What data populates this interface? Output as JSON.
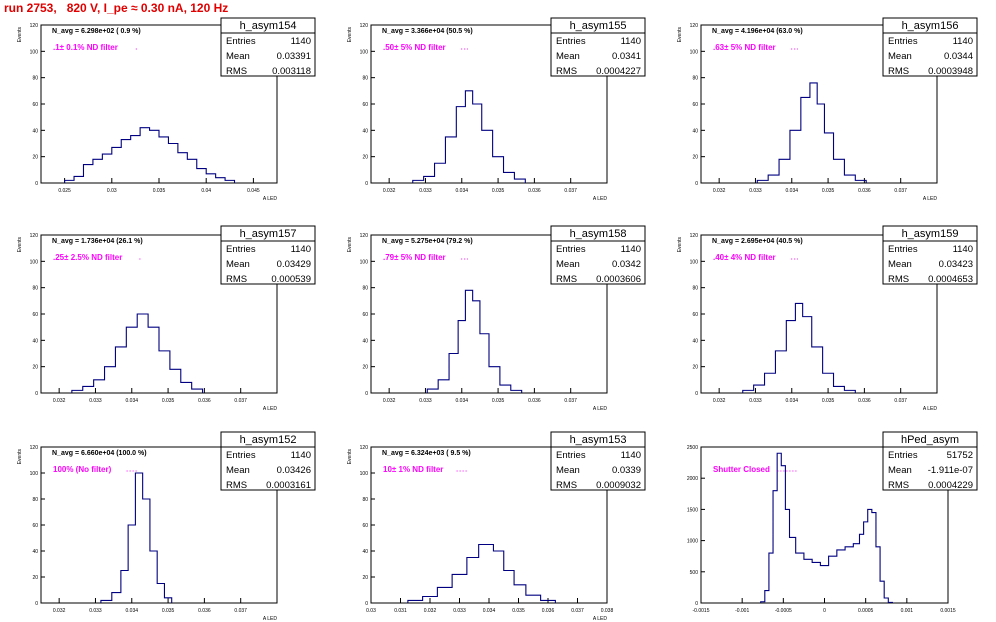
{
  "canvas_title": "run 2753,   820 V, I_pe ≈ 0.30 nA, 120 Hz",
  "colors": {
    "title": "#e00000",
    "annotation": "#ff00ff",
    "histogram": "#000080",
    "axis": "#000000"
  },
  "chart_data": [
    {
      "type": "histogram",
      "name": "h_asym154",
      "ylabel": "Events",
      "xlabel": "A_LED",
      "stats": {
        "entries_label": "Entries",
        "entries": "1140",
        "mean_label": "Mean",
        "mean": "0.03391",
        "rms_label": "RMS",
        "rms": "0.003118"
      },
      "navg": "N_avg = 6.298e+02 ( 0.9 %)",
      "filter_label": ".1± 0.1% ND filter",
      "xlim": [
        0.0225,
        0.0475
      ],
      "ylim": [
        0,
        120
      ],
      "xticks": [
        0.025,
        0.03,
        0.035,
        0.04,
        0.045
      ],
      "xtick_labels": [
        "0.025",
        "0.03",
        "0.035",
        "0.04",
        "0.045"
      ],
      "yticks": [
        0,
        20,
        40,
        60,
        80,
        100,
        120
      ],
      "ytick_labels": [
        "0",
        "20",
        "40",
        "60",
        "80",
        "100",
        "120"
      ],
      "points": [
        [
          0.0255,
          2
        ],
        [
          0.0265,
          5
        ],
        [
          0.0275,
          14
        ],
        [
          0.0285,
          18
        ],
        [
          0.0295,
          22
        ],
        [
          0.0305,
          27
        ],
        [
          0.0315,
          33
        ],
        [
          0.0325,
          36
        ],
        [
          0.0335,
          42
        ],
        [
          0.0345,
          40
        ],
        [
          0.0355,
          35
        ],
        [
          0.0365,
          30
        ],
        [
          0.0375,
          23
        ],
        [
          0.0385,
          18
        ],
        [
          0.0395,
          11
        ],
        [
          0.0405,
          7
        ],
        [
          0.0415,
          4
        ],
        [
          0.0425,
          2
        ]
      ]
    },
    {
      "type": "histogram",
      "name": "h_asym155",
      "ylabel": "Events",
      "xlabel": "A_LED",
      "stats": {
        "entries_label": "Entries",
        "entries": "1140",
        "mean_label": "Mean",
        "mean": "0.0341",
        "rms_label": "RMS",
        "rms": "0.0004227"
      },
      "navg": "N_avg = 3.366e+04 (50.5 %)",
      "filter_label": ".50± 5% ND filter",
      "xlim": [
        0.0315,
        0.038
      ],
      "ylim": [
        0,
        120
      ],
      "xticks": [
        0.032,
        0.033,
        0.034,
        0.035,
        0.036,
        0.037
      ],
      "xtick_labels": [
        "0.032",
        "0.033",
        "0.034",
        "0.035",
        "0.036",
        "0.037"
      ],
      "yticks": [
        0,
        20,
        40,
        60,
        80,
        100,
        120
      ],
      "ytick_labels": [
        "0",
        "20",
        "40",
        "60",
        "80",
        "100",
        "120"
      ],
      "points": [
        [
          0.0328,
          2
        ],
        [
          0.0331,
          5
        ],
        [
          0.0334,
          15
        ],
        [
          0.0337,
          35
        ],
        [
          0.034,
          58
        ],
        [
          0.0342,
          70
        ],
        [
          0.0344,
          60
        ],
        [
          0.0347,
          40
        ],
        [
          0.035,
          20
        ],
        [
          0.0353,
          8
        ],
        [
          0.0356,
          3
        ]
      ]
    },
    {
      "type": "histogram",
      "name": "h_asym156",
      "ylabel": "Events",
      "xlabel": "A_LED",
      "stats": {
        "entries_label": "Entries",
        "entries": "1140",
        "mean_label": "Mean",
        "mean": "0.0344",
        "rms_label": "RMS",
        "rms": "0.0003948"
      },
      "navg": "N_avg = 4.196e+04 (63.0 %)",
      "filter_label": ".63± 5% ND filter",
      "xlim": [
        0.0315,
        0.038
      ],
      "ylim": [
        0,
        120
      ],
      "xticks": [
        0.032,
        0.033,
        0.034,
        0.035,
        0.036,
        0.037
      ],
      "xtick_labels": [
        "0.032",
        "0.033",
        "0.034",
        "0.035",
        "0.036",
        "0.037"
      ],
      "yticks": [
        0,
        20,
        40,
        60,
        80,
        100,
        120
      ],
      "ytick_labels": [
        "0",
        "20",
        "40",
        "60",
        "80",
        "100",
        "120"
      ],
      "points": [
        [
          0.0332,
          2
        ],
        [
          0.0335,
          6
        ],
        [
          0.0338,
          18
        ],
        [
          0.0341,
          40
        ],
        [
          0.0344,
          65
        ],
        [
          0.0346,
          76
        ],
        [
          0.0348,
          60
        ],
        [
          0.035,
          38
        ],
        [
          0.0353,
          18
        ],
        [
          0.0356,
          6
        ],
        [
          0.0359,
          2
        ]
      ]
    },
    {
      "type": "histogram",
      "name": "h_asym157",
      "ylabel": "Events",
      "xlabel": "A_LED",
      "stats": {
        "entries_label": "Entries",
        "entries": "1140",
        "mean_label": "Mean",
        "mean": "0.03429",
        "rms_label": "RMS",
        "rms": "0.000539"
      },
      "navg": "N_avg = 1.736e+04 (26.1 %)",
      "filter_label": ".25± 2.5% ND filter",
      "xlim": [
        0.0315,
        0.038
      ],
      "ylim": [
        0,
        120
      ],
      "xticks": [
        0.032,
        0.033,
        0.034,
        0.035,
        0.036,
        0.037
      ],
      "xtick_labels": [
        "0.032",
        "0.033",
        "0.034",
        "0.035",
        "0.036",
        "0.037"
      ],
      "yticks": [
        0,
        20,
        40,
        60,
        80,
        100,
        120
      ],
      "ytick_labels": [
        "0",
        "20",
        "40",
        "60",
        "80",
        "100",
        "120"
      ],
      "points": [
        [
          0.0325,
          2
        ],
        [
          0.0328,
          5
        ],
        [
          0.0331,
          10
        ],
        [
          0.0334,
          20
        ],
        [
          0.0337,
          35
        ],
        [
          0.034,
          50
        ],
        [
          0.0343,
          60
        ],
        [
          0.0346,
          50
        ],
        [
          0.0349,
          32
        ],
        [
          0.0352,
          18
        ],
        [
          0.0355,
          8
        ],
        [
          0.0358,
          3
        ]
      ]
    },
    {
      "type": "histogram",
      "name": "h_asym158",
      "ylabel": "Events",
      "xlabel": "A_LED",
      "stats": {
        "entries_label": "Entries",
        "entries": "1140",
        "mean_label": "Mean",
        "mean": "0.0342",
        "rms_label": "RMS",
        "rms": "0.0003606"
      },
      "navg": "N_avg = 5.275e+04 (79.2 %)",
      "filter_label": ".79± 5% ND filter",
      "xlim": [
        0.0315,
        0.038
      ],
      "ylim": [
        0,
        120
      ],
      "xticks": [
        0.032,
        0.033,
        0.034,
        0.035,
        0.036,
        0.037
      ],
      "xtick_labels": [
        "0.032",
        "0.033",
        "0.034",
        "0.035",
        "0.036",
        "0.037"
      ],
      "yticks": [
        0,
        20,
        40,
        60,
        80,
        100,
        120
      ],
      "ytick_labels": [
        "0",
        "20",
        "40",
        "60",
        "80",
        "100",
        "120"
      ],
      "points": [
        [
          0.0332,
          3
        ],
        [
          0.0335,
          10
        ],
        [
          0.0338,
          30
        ],
        [
          0.034,
          55
        ],
        [
          0.0342,
          78
        ],
        [
          0.0344,
          70
        ],
        [
          0.0346,
          45
        ],
        [
          0.0349,
          20
        ],
        [
          0.0352,
          6
        ],
        [
          0.0355,
          2
        ]
      ]
    },
    {
      "type": "histogram",
      "name": "h_asym159",
      "ylabel": "Events",
      "xlabel": "A_LED",
      "stats": {
        "entries_label": "Entries",
        "entries": "1140",
        "mean_label": "Mean",
        "mean": "0.03423",
        "rms_label": "RMS",
        "rms": "0.0004653"
      },
      "navg": "N_avg = 2.695e+04 (40.5 %)",
      "filter_label": ".40± 4% ND filter",
      "xlim": [
        0.0315,
        0.038
      ],
      "ylim": [
        0,
        120
      ],
      "xticks": [
        0.032,
        0.033,
        0.034,
        0.035,
        0.036,
        0.037
      ],
      "xtick_labels": [
        "0.032",
        "0.033",
        "0.034",
        "0.035",
        "0.036",
        "0.037"
      ],
      "yticks": [
        0,
        20,
        40,
        60,
        80,
        100,
        120
      ],
      "ytick_labels": [
        "0",
        "20",
        "40",
        "60",
        "80",
        "100",
        "120"
      ],
      "points": [
        [
          0.0328,
          2
        ],
        [
          0.0331,
          6
        ],
        [
          0.0334,
          15
        ],
        [
          0.0337,
          32
        ],
        [
          0.034,
          55
        ],
        [
          0.0342,
          68
        ],
        [
          0.0344,
          58
        ],
        [
          0.0347,
          35
        ],
        [
          0.035,
          15
        ],
        [
          0.0353,
          5
        ],
        [
          0.0356,
          2
        ]
      ]
    },
    {
      "type": "histogram",
      "name": "h_asym152",
      "ylabel": "Events",
      "xlabel": "A_LED",
      "stats": {
        "entries_label": "Entries",
        "entries": "1140",
        "mean_label": "Mean",
        "mean": "0.03426",
        "rms_label": "RMS",
        "rms": "0.0003161"
      },
      "navg": "N_avg = 6.660e+04 (100.0 %)",
      "filter_label": "100% (No filter)",
      "xlim": [
        0.0315,
        0.038
      ],
      "ylim": [
        0,
        120
      ],
      "xticks": [
        0.032,
        0.033,
        0.034,
        0.035,
        0.036,
        0.037
      ],
      "xtick_labels": [
        "0.032",
        "0.033",
        "0.034",
        "0.035",
        "0.036",
        "0.037"
      ],
      "yticks": [
        0,
        20,
        40,
        60,
        80,
        100,
        120
      ],
      "ytick_labels": [
        "0",
        "20",
        "40",
        "60",
        "80",
        "100",
        "120"
      ],
      "points": [
        [
          0.0333,
          2
        ],
        [
          0.0336,
          8
        ],
        [
          0.0338,
          25
        ],
        [
          0.034,
          60
        ],
        [
          0.0342,
          100
        ],
        [
          0.0344,
          80
        ],
        [
          0.0346,
          40
        ],
        [
          0.0348,
          15
        ],
        [
          0.035,
          4
        ]
      ]
    },
    {
      "type": "histogram",
      "name": "h_asym153",
      "ylabel": "Events",
      "xlabel": "A_LED",
      "stats": {
        "entries_label": "Entries",
        "entries": "1140",
        "mean_label": "Mean",
        "mean": "0.0339",
        "rms_label": "RMS",
        "rms": "0.0009032"
      },
      "navg": "N_avg = 6.324e+03 ( 9.5 %)",
      "filter_label": "10± 1% ND filter",
      "xlim": [
        0.03,
        0.038
      ],
      "ylim": [
        0,
        120
      ],
      "xticks": [
        0.03,
        0.031,
        0.032,
        0.033,
        0.034,
        0.035,
        0.036,
        0.037,
        0.038
      ],
      "xtick_labels": [
        "0.03",
        "0.031",
        "0.032",
        "0.033",
        "0.034",
        "0.035",
        "0.036",
        "0.037",
        "0.038"
      ],
      "yticks": [
        0,
        20,
        40,
        60,
        80,
        100,
        120
      ],
      "ytick_labels": [
        "0",
        "20",
        "40",
        "60",
        "80",
        "100",
        "120"
      ],
      "points": [
        [
          0.0315,
          2
        ],
        [
          0.032,
          5
        ],
        [
          0.0325,
          12
        ],
        [
          0.033,
          22
        ],
        [
          0.0335,
          35
        ],
        [
          0.0338,
          45
        ],
        [
          0.034,
          45
        ],
        [
          0.0343,
          40
        ],
        [
          0.0347,
          25
        ],
        [
          0.035,
          14
        ],
        [
          0.0355,
          6
        ],
        [
          0.036,
          2
        ]
      ]
    },
    {
      "type": "histogram",
      "name": "hPed_asym",
      "ylabel": "",
      "xlabel": "",
      "stats": {
        "entries_label": "Entries",
        "entries": "51752",
        "mean_label": "Mean",
        "mean": "-1.911e-07",
        "rms_label": "RMS",
        "rms": "0.0004229"
      },
      "navg": "",
      "filter_label": "Shutter Closed",
      "xlim": [
        -0.0015,
        0.0015
      ],
      "ylim": [
        0,
        2500
      ],
      "xticks": [
        -0.0015,
        -0.001,
        -0.0005,
        0,
        0.0005,
        0.001,
        0.0015
      ],
      "xtick_labels": [
        "-0.0015",
        "-0.001",
        "-0.0005",
        "0",
        "0.0005",
        "0.001",
        "0.0015"
      ],
      "yticks": [
        0,
        500,
        1000,
        1500,
        2000,
        2500
      ],
      "ytick_labels": [
        "0",
        "500",
        "1000",
        "1500",
        "2000",
        "2500"
      ],
      "points": [
        [
          -0.00075,
          20
        ],
        [
          -0.0007,
          200
        ],
        [
          -0.00065,
          800
        ],
        [
          -0.0006,
          1800
        ],
        [
          -0.00055,
          2400
        ],
        [
          -0.0005,
          2200
        ],
        [
          -0.00045,
          1500
        ],
        [
          -0.0004,
          1050
        ],
        [
          -0.0003,
          800
        ],
        [
          -0.0002,
          700
        ],
        [
          -0.0001,
          650
        ],
        [
          0,
          600
        ],
        [
          0.0001,
          750
        ],
        [
          0.0002,
          850
        ],
        [
          0.0003,
          900
        ],
        [
          0.0004,
          950
        ],
        [
          0.00045,
          1100
        ],
        [
          0.0005,
          1300
        ],
        [
          0.00055,
          1500
        ],
        [
          0.0006,
          1450
        ],
        [
          0.00065,
          900
        ],
        [
          0.0007,
          350
        ],
        [
          0.00075,
          80
        ],
        [
          0.0008,
          10
        ]
      ]
    }
  ]
}
